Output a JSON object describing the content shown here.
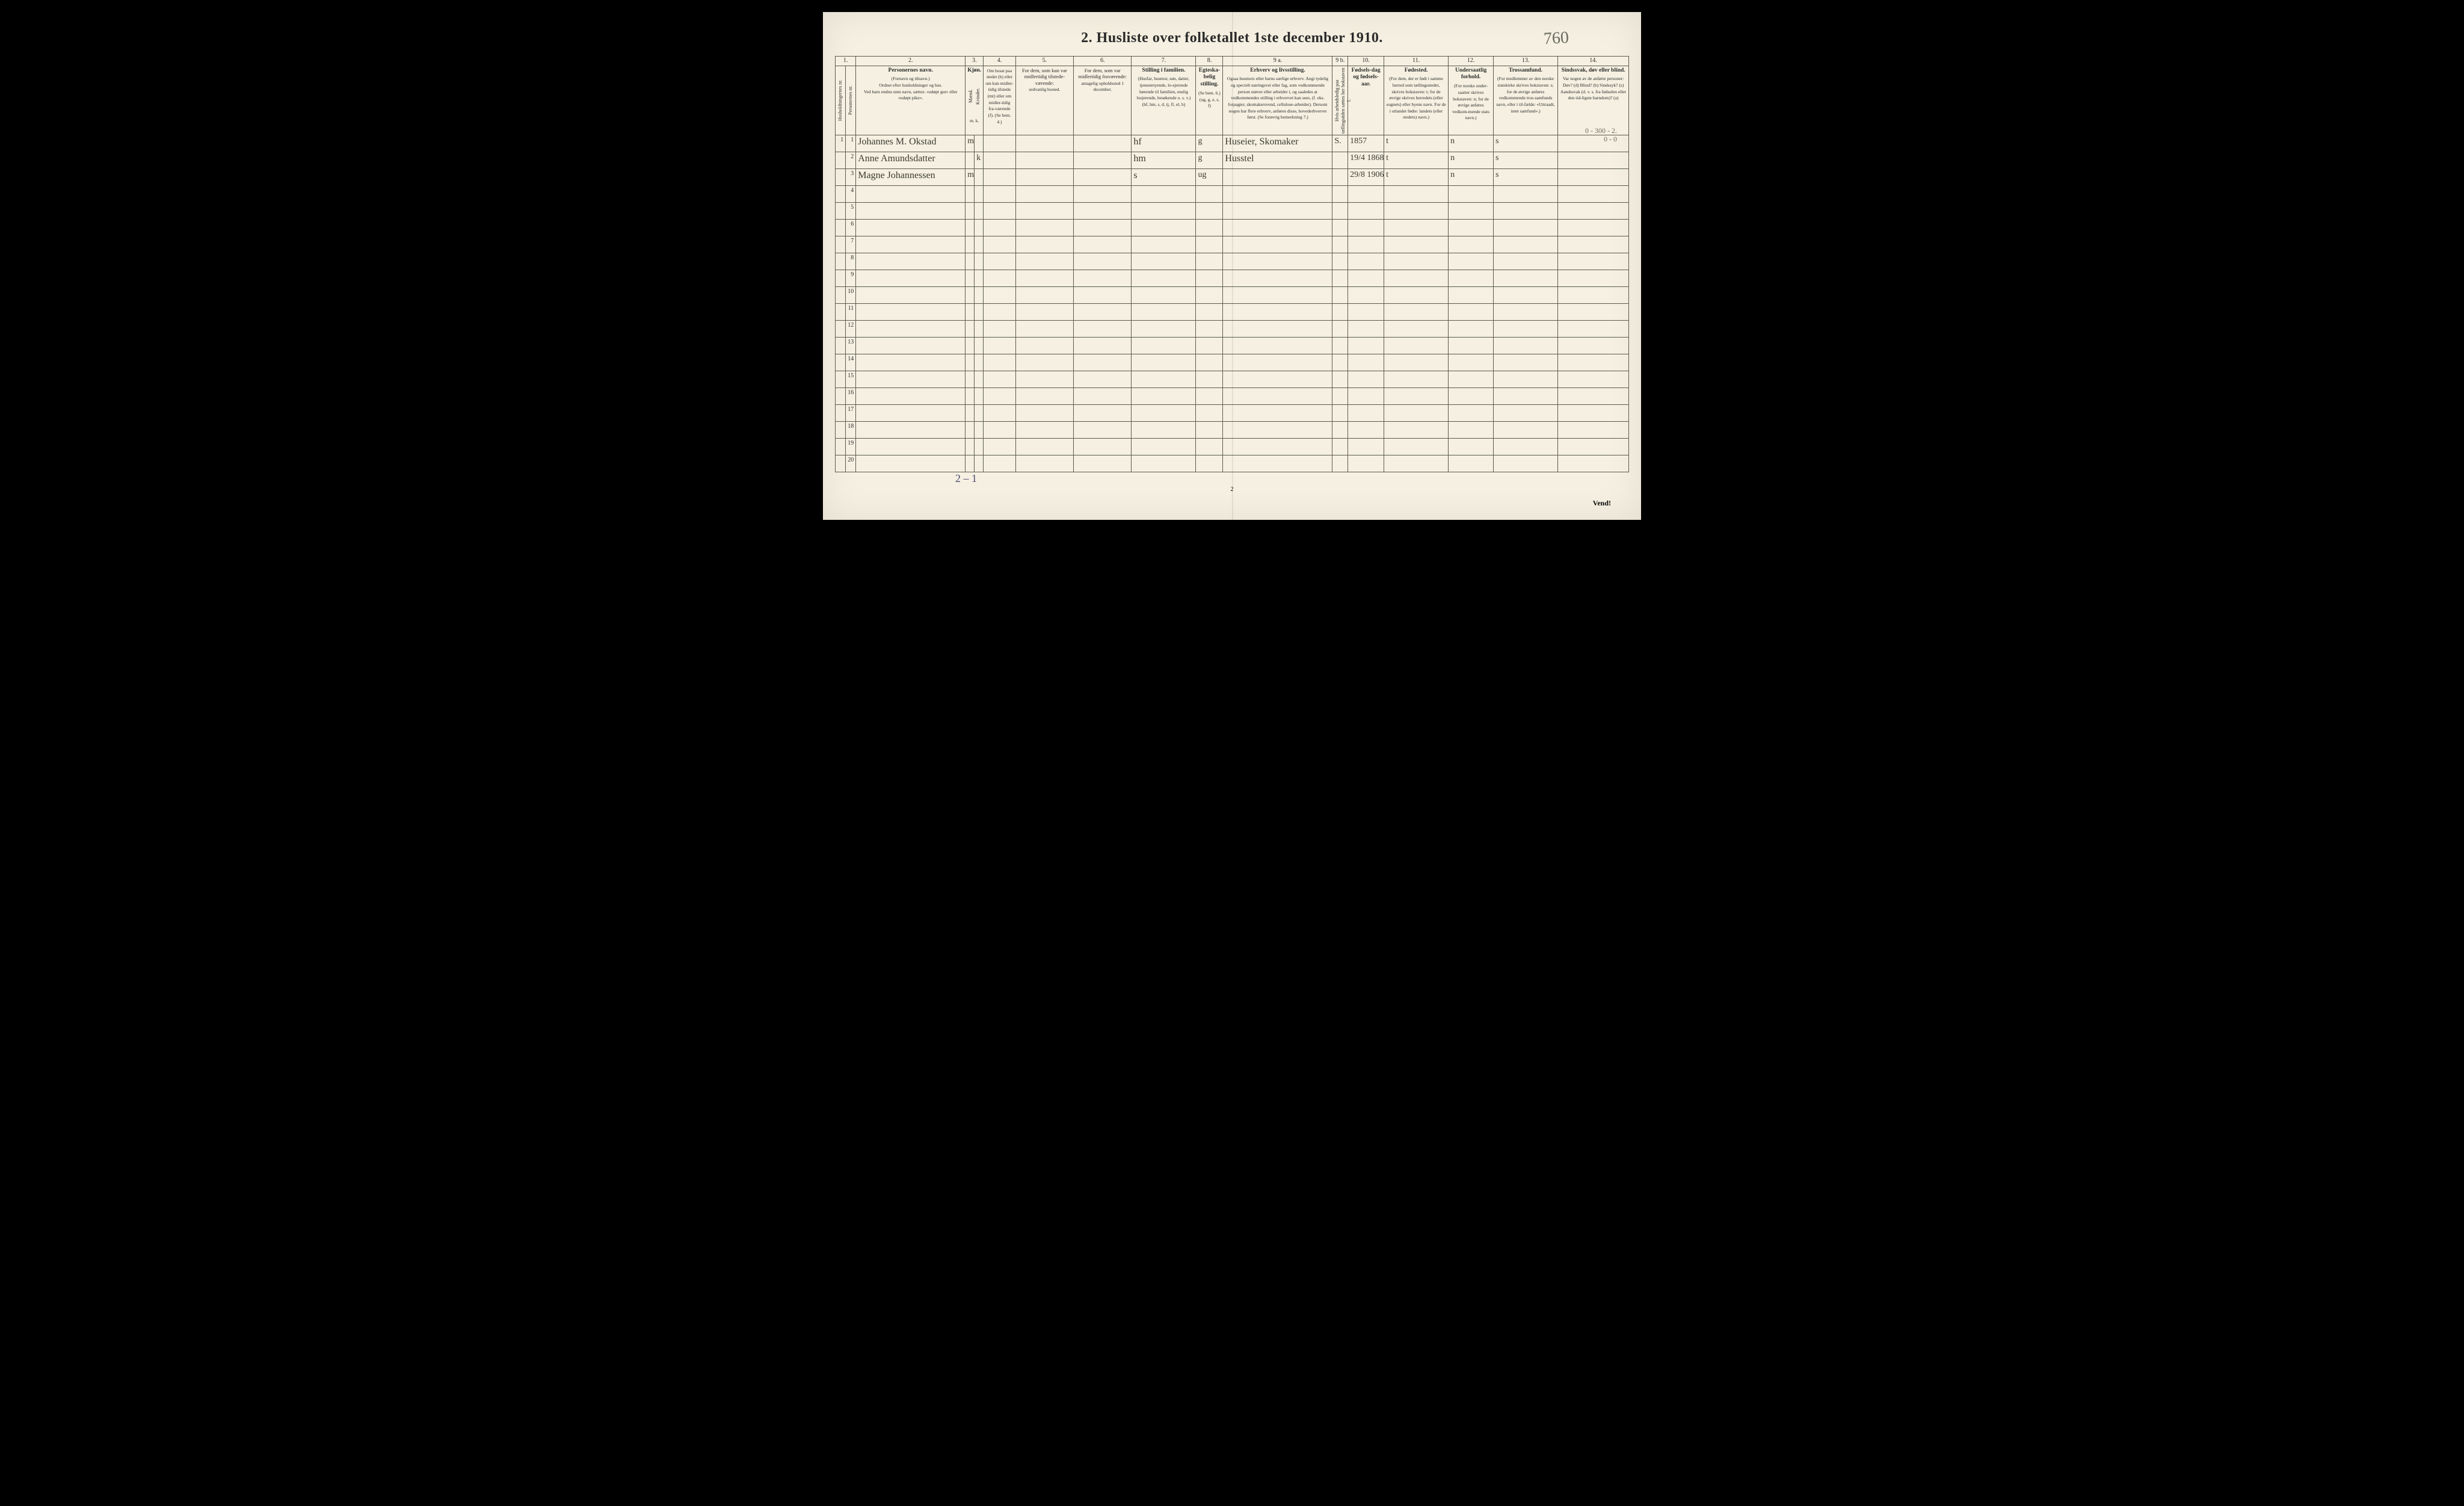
{
  "title": "2.  Husliste over folketallet 1ste december 1910.",
  "handwritten_top": "760",
  "margin_notes": {
    "top_right_small": "0 - 300 - 2.",
    "top_right_small2": "0 -   0"
  },
  "bottom_tally": "2 – 1",
  "page_number": "2",
  "vend": "Vend!",
  "columns": {
    "c1": "1.",
    "c2": "2.",
    "c3": "3.",
    "c4": "4.",
    "c5": "5.",
    "c6": "6.",
    "c7": "7.",
    "c8": "8.",
    "c9a": "9 a.",
    "c9b": "9 b.",
    "c10": "10.",
    "c11": "11.",
    "c12": "12.",
    "c13": "13.",
    "c14": "14."
  },
  "headers": {
    "h1a": "Husholdningernes nr.",
    "h1b": "Personernes nr.",
    "h2_strong": "Personernes navn.",
    "h2_sub1": "(Fornavn og tilnavn.)",
    "h2_sub2": "Ordnet efter husholdninger og hus.",
    "h2_sub3": "Ved barn endnu uten navn, sættes: «udøpt gut» eller «udøpt pike».",
    "h3_strong": "Kjøn.",
    "h3_m": "Mænd.",
    "h3_k": "Kvinder.",
    "h3_mk": "m.  k.",
    "h4": "Om bosat paa stedet (b) eller om kun midler-tidig tilstede (mt) eller om midler-tidig fra-værende (f). (Se bem. 4.)",
    "h5_strong": "For dem, som kun var midlertidig tilstede-værende:",
    "h5_sub": "sedvanlig bosted.",
    "h6_strong": "For dem, som var midlertidig fraværende:",
    "h6_sub": "antagelig opholdssted 1 december.",
    "h7_strong": "Stilling i familien.",
    "h7_sub": "(Husfar, husmor, søn, datter, tjenestetyende, lo-sjerende hørende til familien, enslig losjerende, besøkende o. s. v.) (hf, hm, s, d, tj, fl, el, b)",
    "h8_strong": "Egteska-belig stilling.",
    "h8_sub": "(Se bem. 6.) (ug, g, e, s, f)",
    "h9a_strong": "Erhverv og livsstilling.",
    "h9a_sub": "Ogsaa husmors eller barns særlige erhverv. Angi tydelig og specielt næringsvei eller fag, som vedkommende person utøver eller arbeider i, og saaledes at vedkommendes stilling i erhvervet kan sees, (f. eks. forpagter, skomakersvend, cellulose-arbeider). Dersom nogen har flere erhverv, anføres disse, hovederhvervet først. (Se forøvrig bemerkning 7.)",
    "h9b": "Hvis arbeidsledig paa tællingstiden sættes her bokstaven l.",
    "h10_strong": "Fødsels-dag og fødsels-aar.",
    "h11_strong": "Fødested.",
    "h11_sub": "(For dem, der er født i samme herred som tællingsstedet, skrives bokstaven: t; for de øvrige skrives herredets (eller sognets) eller byens navn. For de i utlandet fødte: landets (eller stedets) navn.)",
    "h12_strong": "Undersaatlig forhold.",
    "h12_sub": "(For norske under-saatter skrives bokstaven: n; for de øvrige anføres vedkom-mende stats navn.)",
    "h13_strong": "Trossamfund.",
    "h13_sub": "(For medlemmer av den norske statskirke skrives bokstaven: s; for de øvrige anføres vedkommende tros-samfunds navn, eller i til-fælde: «Uttraadt, intet samfund».)",
    "h14_strong": "Sindssvak, døv eller blind.",
    "h14_sub": "Var nogen av de anførte personer: Døv? (d) Blind? (b) Sindssyk? (s) Aandssvak (d. v. s. fra fødselen eller den tid-ligste barndom)? (a)"
  },
  "rows": [
    {
      "nr": "1",
      "hnr": "1",
      "name": "Johannes M. Okstad",
      "sex": "m",
      "fam": "hf",
      "eg": "g",
      "erhv": "Huseier, Skomaker",
      "l": "S.",
      "dob": "1857",
      "born": "t",
      "nat": "n",
      "rel": "s"
    },
    {
      "nr": "2",
      "hnr": "",
      "name": "Anne Amundsdatter",
      "sex": "k",
      "fam": "hm",
      "eg": "g",
      "erhv": "Husstel",
      "l": "",
      "dob": "19/4 1868",
      "born": "t",
      "nat": "n",
      "rel": "s"
    },
    {
      "nr": "3",
      "hnr": "",
      "name": "Magne Johannessen",
      "sex": "m",
      "fam": "s",
      "eg": "ug",
      "erhv": "",
      "l": "",
      "dob": "29/8 1906",
      "born": "t",
      "nat": "n",
      "rel": "s"
    },
    {
      "nr": "4"
    },
    {
      "nr": "5"
    },
    {
      "nr": "6"
    },
    {
      "nr": "7"
    },
    {
      "nr": "8"
    },
    {
      "nr": "9"
    },
    {
      "nr": "10"
    },
    {
      "nr": "11"
    },
    {
      "nr": "12"
    },
    {
      "nr": "13"
    },
    {
      "nr": "14"
    },
    {
      "nr": "15"
    },
    {
      "nr": "16"
    },
    {
      "nr": "17"
    },
    {
      "nr": "18"
    },
    {
      "nr": "19"
    },
    {
      "nr": "20"
    }
  ],
  "col_widths": {
    "c1a": 16,
    "c1b": 16,
    "c2": 170,
    "c3a": 14,
    "c3b": 14,
    "c4": 50,
    "c5": 90,
    "c6": 90,
    "c7": 100,
    "c8": 42,
    "c9a": 170,
    "c9b": 24,
    "c10": 56,
    "c11": 100,
    "c12": 70,
    "c13": 100,
    "c14": 110
  },
  "colors": {
    "paper": "#f5f0e1",
    "rule": "#5a5a50",
    "ink": "#2a2a2a",
    "pencil": "#6a6a60"
  }
}
